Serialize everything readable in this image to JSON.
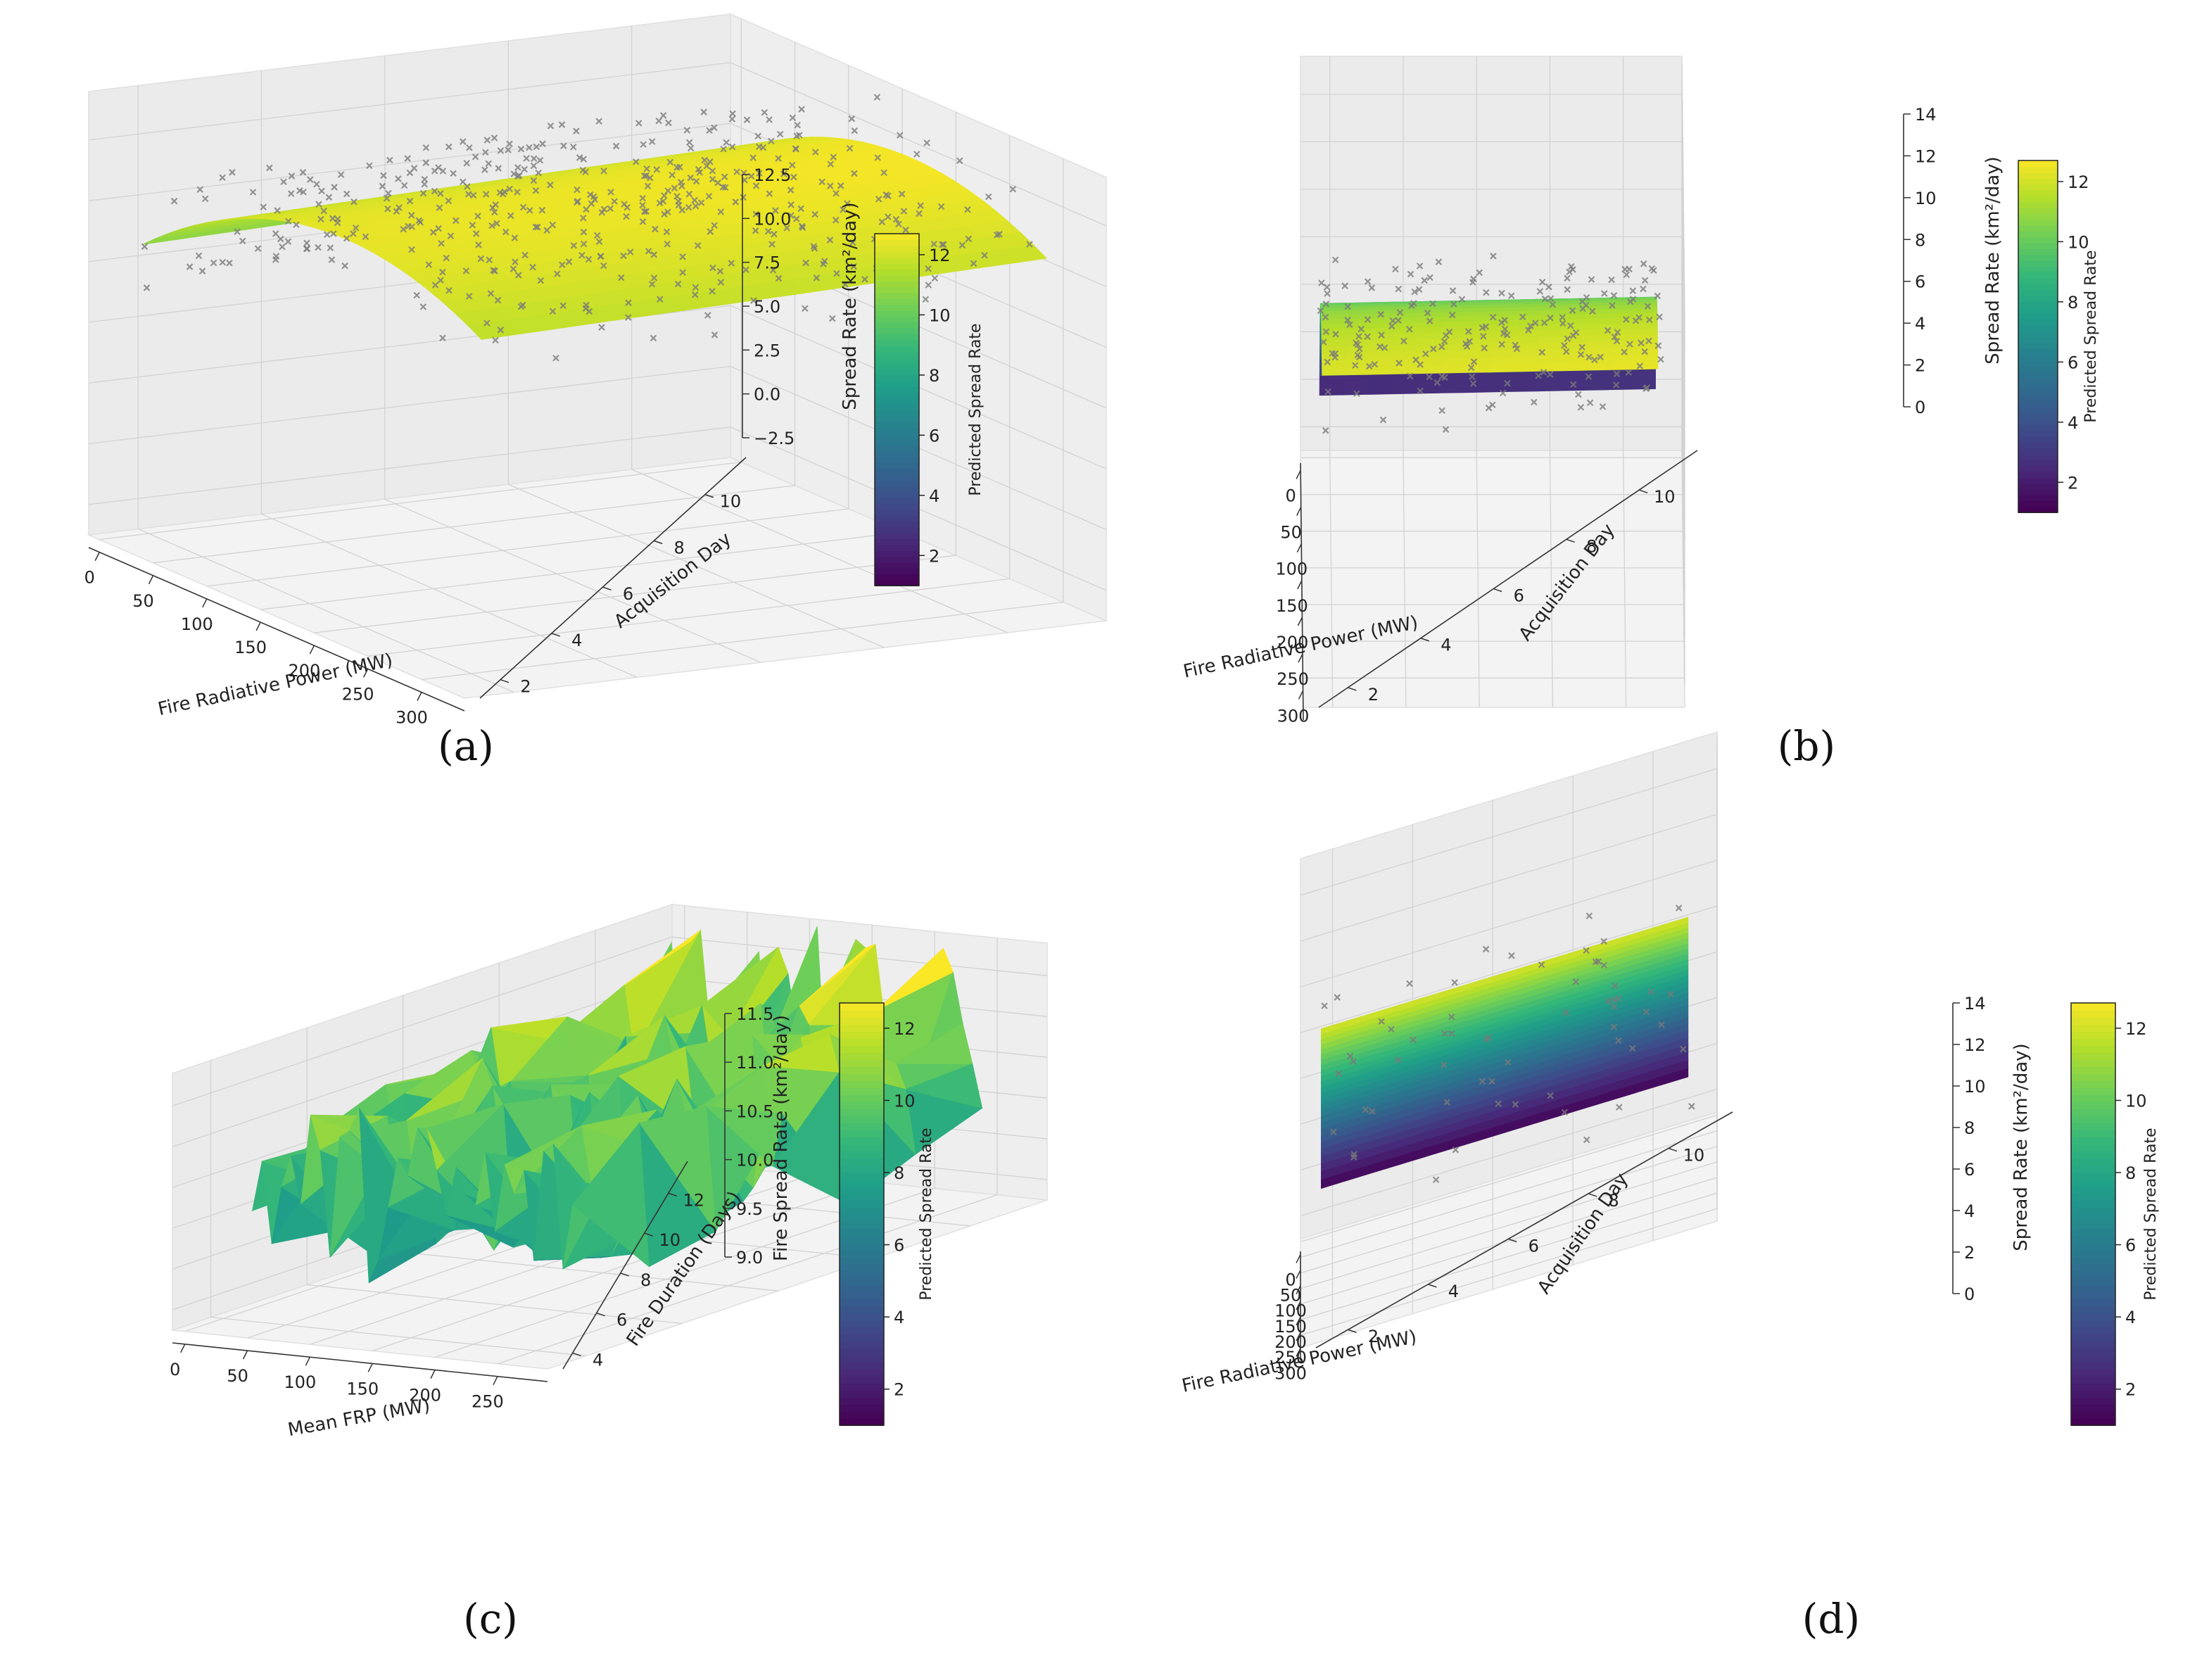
{
  "chart_data": [
    {
      "type": "surface3d",
      "panel": "a",
      "caption": "(a)",
      "xlabel": "Fire Radiative Power (MW)",
      "ylabel": "Acquisition Day",
      "zlabel": "Spread Rate (km²/day)",
      "xticks": [
        "0",
        "50",
        "100",
        "150",
        "200",
        "250",
        "300"
      ],
      "yticks": [
        "2",
        "4",
        "6",
        "8",
        "10"
      ],
      "zticks": [
        "−2.5",
        "0.0",
        "2.5",
        "5.0",
        "7.5",
        "10.0",
        "12.5"
      ],
      "xlim": [
        0,
        300
      ],
      "ylim": [
        1,
        11
      ],
      "zlim": [
        -4,
        14
      ],
      "colorbar": {
        "label": "Predicted Spread Rate",
        "ticks": [
          "2",
          "4",
          "6",
          "8",
          "10",
          "12"
        ],
        "range": [
          1,
          12.7
        ]
      },
      "surface": {
        "model": "quadratic",
        "peak": 12.2,
        "dominant": "yellow"
      },
      "scatter_points": 450
    },
    {
      "type": "surface3d",
      "panel": "b",
      "caption": "(b)",
      "xlabel": "Fire Radiative Power (MW)",
      "ylabel": "Acquisition Day",
      "zlabel": "Spread Rate (km²/day)",
      "xticks": [
        "0",
        "50",
        "100",
        "150",
        "200",
        "250",
        "300"
      ],
      "yticks": [
        "2",
        "4",
        "6",
        "8",
        "10"
      ],
      "zticks": [
        "0",
        "2",
        "4",
        "6",
        "8",
        "10",
        "12",
        "14"
      ],
      "xlim": [
        0,
        300
      ],
      "ylim": [
        1,
        11
      ],
      "zlim": [
        -1,
        15
      ],
      "colorbar": {
        "label": "Predicted Spread Rate",
        "ticks": [
          "2",
          "4",
          "6",
          "8",
          "10",
          "12"
        ],
        "range": [
          1,
          12.7
        ]
      },
      "surface": {
        "model": "saturating",
        "peak": 12.5,
        "dominant": "green"
      },
      "scatter_points": 200
    },
    {
      "type": "trisurf3d",
      "panel": "c",
      "caption": "(c)",
      "xlabel": "Mean FRP (MW)",
      "ylabel": "Fire Duration (Days)",
      "zlabel": "Fire Spread Rate (km²/day)",
      "xticks": [
        "0",
        "50",
        "100",
        "150",
        "200",
        "250"
      ],
      "yticks": [
        "4",
        "6",
        "8",
        "10",
        "12"
      ],
      "zticks": [
        "9.0",
        "9.5",
        "10.0",
        "10.5",
        "11.0",
        "11.5"
      ],
      "xlim": [
        0,
        260
      ],
      "ylim": [
        3,
        13
      ],
      "zlim": [
        8.7,
        12.1
      ],
      "colorbar": {
        "label": "Predicted Spread Rate",
        "ticks": [
          "2",
          "4",
          "6",
          "8",
          "10",
          "12"
        ],
        "range": [
          1,
          12.7
        ]
      },
      "surface": {
        "model": "jagged",
        "dominant": "green"
      }
    },
    {
      "type": "surface3d",
      "panel": "d",
      "caption": "(d)",
      "xlabel": "Fire Radiative Power (MW)",
      "ylabel": "Acquisition Day",
      "zlabel": "Spread Rate (km²/day)",
      "xticks": [
        "0",
        "50",
        "100",
        "150",
        "200",
        "250",
        "300"
      ],
      "yticks": [
        "2",
        "4",
        "6",
        "8",
        "10"
      ],
      "zticks": [
        "0",
        "2",
        "4",
        "6",
        "8",
        "10",
        "12",
        "14"
      ],
      "xlim": [
        0,
        300
      ],
      "ylim": [
        1,
        11
      ],
      "zlim": [
        -1,
        15
      ],
      "colorbar": {
        "label": "Predicted Spread Rate",
        "ticks": [
          "2",
          "4",
          "6",
          "8",
          "10",
          "12"
        ],
        "range": [
          1,
          12.7
        ]
      },
      "surface": {
        "model": "sqrt",
        "peak": 12.5,
        "dominant": "teal"
      },
      "scatter_points": 60
    }
  ]
}
